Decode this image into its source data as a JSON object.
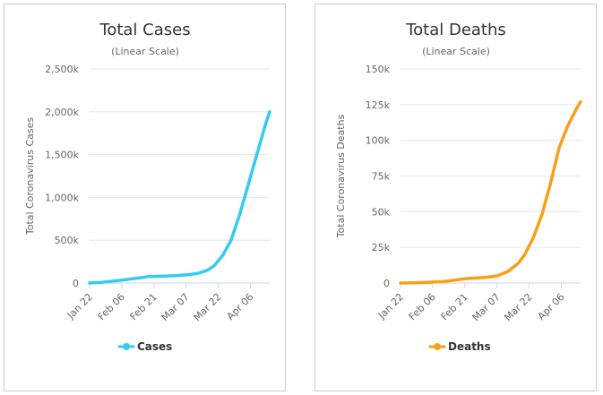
{
  "chart_data": [
    {
      "type": "line",
      "title": "Total Cases",
      "subtitle": "(Linear Scale)",
      "xlabel": "",
      "ylabel": "Total Coronavirus Cases",
      "ylim": [
        0,
        2500000
      ],
      "y_ticks": [
        0,
        500000,
        1000000,
        1500000,
        2000000,
        2500000
      ],
      "y_tick_labels": [
        "0",
        "500k",
        "1,000k",
        "1,500k",
        "2,000k",
        "2,500k"
      ],
      "x_tick_labels": [
        "Jan 22",
        "Feb 06",
        "Feb 21",
        "Mar 07",
        "Mar 22",
        "Apr 06"
      ],
      "x_tick_days": [
        0,
        15,
        30,
        45,
        60,
        75
      ],
      "x_range_days": [
        0,
        84
      ],
      "grid": true,
      "legend_position": "bottom",
      "series": [
        {
          "name": "Cases",
          "color": "#33ccf0",
          "x_days": [
            0,
            5,
            10,
            15,
            20,
            25,
            27,
            30,
            35,
            40,
            45,
            50,
            55,
            58,
            62,
            66,
            70,
            74,
            78,
            82,
            84
          ],
          "values": [
            600,
            6000,
            20000,
            35000,
            50000,
            65000,
            75000,
            78000,
            82000,
            86000,
            95000,
            110000,
            150000,
            200000,
            320000,
            500000,
            800000,
            1150000,
            1500000,
            1850000,
            2000000
          ]
        }
      ]
    },
    {
      "type": "line",
      "title": "Total Deaths",
      "subtitle": "(Linear Scale)",
      "xlabel": "",
      "ylabel": "Total Coronavirus Deaths",
      "ylim": [
        0,
        150000
      ],
      "y_ticks": [
        0,
        25000,
        50000,
        75000,
        100000,
        125000,
        150000
      ],
      "y_tick_labels": [
        "0",
        "25k",
        "50k",
        "75k",
        "100k",
        "125k",
        "150k"
      ],
      "x_tick_labels": [
        "Jan 22",
        "Feb 06",
        "Feb 21",
        "Mar 07",
        "Mar 22",
        "Apr 06"
      ],
      "x_tick_days": [
        0,
        15,
        30,
        45,
        60,
        75
      ],
      "x_range_days": [
        0,
        84
      ],
      "grid": true,
      "legend_position": "bottom",
      "series": [
        {
          "name": "Deaths",
          "color": "#f7a01a",
          "x_days": [
            0,
            10,
            20,
            25,
            30,
            35,
            40,
            45,
            50,
            55,
            58,
            62,
            66,
            70,
            74,
            78,
            82,
            84
          ],
          "values": [
            20,
            300,
            1000,
            2000,
            3000,
            3500,
            4000,
            5000,
            8000,
            14000,
            20000,
            32000,
            48000,
            70000,
            95000,
            110000,
            122000,
            127000
          ]
        }
      ]
    }
  ]
}
